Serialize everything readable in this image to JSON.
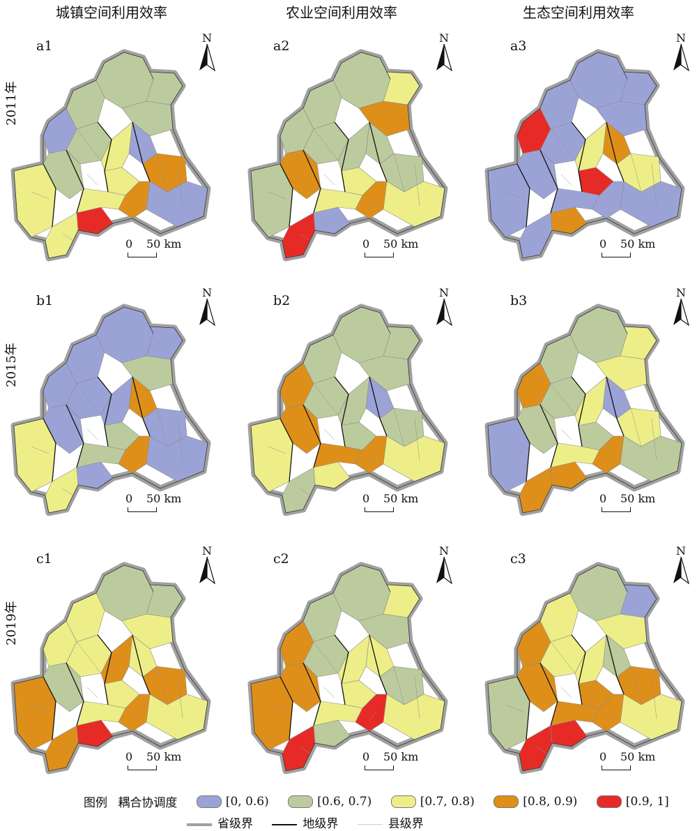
{
  "column_titles": [
    "城镇空间利用效率",
    "农业空间利用效率",
    "生态空间利用效率"
  ],
  "row_years": [
    "2011年",
    "2015年",
    "2019年"
  ],
  "panel_ids": [
    [
      "a1",
      "a2",
      "a3"
    ],
    [
      "b1",
      "b2",
      "b3"
    ],
    [
      "c1",
      "c2",
      "c3"
    ]
  ],
  "north_label": "N",
  "scale": {
    "zero": "0",
    "distance": "50 km"
  },
  "legend": {
    "title": "图例",
    "subtitle": "耦合协调度",
    "classes": [
      {
        "label": "[0, 0.6)",
        "color": "#9ba3d6"
      },
      {
        "label": "[0.6, 0.7)",
        "color": "#bccb9d"
      },
      {
        "label": "[0.7, 0.8)",
        "color": "#eeee88"
      },
      {
        "label": "[0.8, 0.9)",
        "color": "#de8f1a"
      },
      {
        "label": "[0.9, 1]",
        "color": "#e62b26"
      }
    ],
    "boundaries": [
      {
        "label": "省级界",
        "color": "#a0a0a0"
      },
      {
        "label": "地级界",
        "color": "#111111"
      },
      {
        "label": "县级界",
        "color": "#cccccc"
      }
    ]
  },
  "panel_region_classes": [
    [
      [
        1,
        1,
        1,
        1,
        1,
        0,
        0,
        2,
        3,
        4,
        2,
        2,
        1,
        2,
        2,
        3,
        0
      ],
      [
        1,
        1,
        3,
        2,
        1,
        1,
        1,
        1,
        1,
        0,
        2,
        1,
        3,
        4,
        2,
        3,
        2
      ],
      [
        0,
        0,
        0,
        0,
        0,
        4,
        3,
        2,
        2,
        3,
        4,
        0,
        0,
        0,
        0,
        0,
        0
      ]
    ],
    [
      [
        0,
        0,
        1,
        0,
        0,
        0,
        3,
        0,
        0,
        0,
        1,
        2,
        0,
        2,
        1,
        3,
        0
      ],
      [
        1,
        1,
        1,
        1,
        1,
        3,
        0,
        1,
        1,
        2,
        1,
        2,
        3,
        1,
        3,
        3,
        2
      ],
      [
        1,
        1,
        2,
        2,
        1,
        3,
        0,
        2,
        2,
        3,
        1,
        0,
        1,
        3,
        2,
        3,
        1
      ]
    ],
    [
      [
        1,
        2,
        2,
        1,
        2,
        2,
        2,
        3,
        3,
        4,
        2,
        3,
        1,
        3,
        2,
        3,
        2
      ],
      [
        1,
        1,
        1,
        2,
        1,
        3,
        2,
        2,
        1,
        1,
        2,
        3,
        3,
        4,
        2,
        4,
        2
      ],
      [
        1,
        2,
        2,
        0,
        2,
        3,
        1,
        2,
        3,
        4,
        3,
        1,
        3,
        4,
        3,
        3,
        2
      ]
    ]
  ]
}
